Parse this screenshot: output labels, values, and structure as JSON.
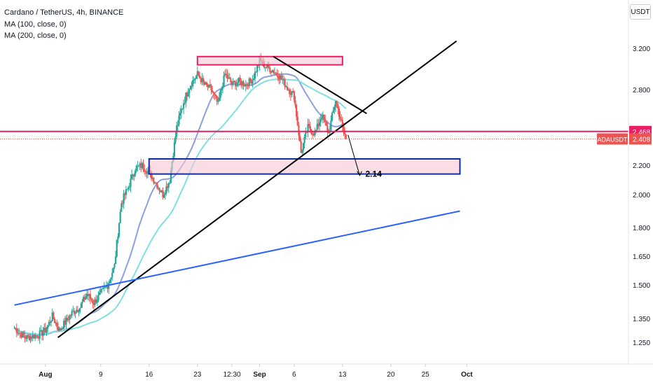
{
  "legend": {
    "title": "Cardano / TetherUS, 4h, BINANCE",
    "ma1": "MA (100, close, 0)",
    "ma2": "MA (200, close, 0)"
  },
  "unit": "USDT",
  "colors": {
    "up": "#26a69a",
    "down": "#ef5350",
    "zone_stroke": "#e91e63",
    "zone_fill": "#f8c8d4",
    "support_stroke": "#0d2fa3",
    "trend_black": "#000000",
    "trend_blue": "#2962ff",
    "ma100": "#8c9fe0",
    "ma200": "#7fe0e0",
    "price_tag": "#ef5350",
    "level_tag": "#e91e63"
  },
  "chart_data": {
    "type": "candlestick",
    "symbol": "ADAUSDT",
    "y_ticks": [
      "3.200",
      "2.800",
      "2.468",
      "2.408",
      "2.200",
      "2.000",
      "1.800",
      "1.650",
      "1.500",
      "1.350",
      "1.250"
    ],
    "y_tick_values": [
      3.2,
      2.8,
      2.2,
      2.0,
      1.8,
      1.65,
      1.5,
      1.35,
      1.25
    ],
    "x_ticks": [
      {
        "label": "Aug",
        "day": 1
      },
      {
        "label": "9",
        "day": 9
      },
      {
        "label": "16",
        "day": 16
      },
      {
        "label": "23",
        "day": 23
      },
      {
        "label": "12:30",
        "day": 28
      },
      {
        "label": "Sep",
        "day": 32
      },
      {
        "label": "6",
        "day": 37
      },
      {
        "label": "13",
        "day": 44
      },
      {
        "label": "20",
        "day": 51
      },
      {
        "label": "25",
        "day": 56
      },
      {
        "label": "Oct",
        "day": 62
      }
    ],
    "bold_x_ticks": [
      "Aug",
      "Sep",
      "Oct"
    ],
    "last_price": 2.408,
    "level_line": 2.468,
    "price_label": "2.408",
    "level_label": "2.468",
    "symbol_tag": "ADAUSDT",
    "target_annotation": "2.14",
    "zones": [
      {
        "name": "resistance",
        "from_day": 23,
        "to_day": 44,
        "low": 3.04,
        "high": 3.12
      },
      {
        "name": "support",
        "from_day": 16,
        "to_day": 61,
        "low": 2.14,
        "high": 2.25
      }
    ],
    "trendlines": [
      {
        "name": "rising-black",
        "from": {
          "day": 2.8,
          "price": 1.27
        },
        "to": {
          "day": 60.5,
          "price": 3.27
        }
      },
      {
        "name": "falling-black",
        "from": {
          "day": 34,
          "price": 3.12
        },
        "to": {
          "day": 47.5,
          "price": 2.61
        }
      },
      {
        "name": "blue-long",
        "from": {
          "day": -3.5,
          "price": 1.41
        },
        "to": {
          "day": 61,
          "price": 1.9
        }
      }
    ],
    "series_anchor_points": [
      [
        -3.5,
        1.31
      ],
      [
        -2,
        1.27
      ],
      [
        0,
        1.28
      ],
      [
        1,
        1.3
      ],
      [
        2,
        1.36
      ],
      [
        3,
        1.3
      ],
      [
        4,
        1.34
      ],
      [
        5,
        1.38
      ],
      [
        6,
        1.4
      ],
      [
        7,
        1.46
      ],
      [
        8,
        1.42
      ],
      [
        9,
        1.46
      ],
      [
        10,
        1.5
      ],
      [
        11,
        1.6
      ],
      [
        12,
        1.95
      ],
      [
        13,
        2.05
      ],
      [
        14,
        2.18
      ],
      [
        15,
        2.2
      ],
      [
        16,
        2.15
      ],
      [
        17,
        2.08
      ],
      [
        18,
        2.0
      ],
      [
        19,
        2.1
      ],
      [
        20,
        2.5
      ],
      [
        21,
        2.7
      ],
      [
        22,
        2.85
      ],
      [
        23,
        2.95
      ],
      [
        24,
        2.85
      ],
      [
        25,
        2.8
      ],
      [
        26,
        2.68
      ],
      [
        27,
        2.95
      ],
      [
        28,
        2.85
      ],
      [
        29,
        2.88
      ],
      [
        30,
        2.85
      ],
      [
        31,
        2.9
      ],
      [
        32,
        3.08
      ],
      [
        33,
        3.02
      ],
      [
        34,
        2.98
      ],
      [
        35,
        2.92
      ],
      [
        36,
        2.82
      ],
      [
        37,
        2.75
      ],
      [
        38,
        2.3
      ],
      [
        39,
        2.5
      ],
      [
        40,
        2.45
      ],
      [
        41,
        2.6
      ],
      [
        42,
        2.45
      ],
      [
        43,
        2.72
      ],
      [
        44,
        2.5
      ],
      [
        44.6,
        2.4
      ]
    ]
  }
}
